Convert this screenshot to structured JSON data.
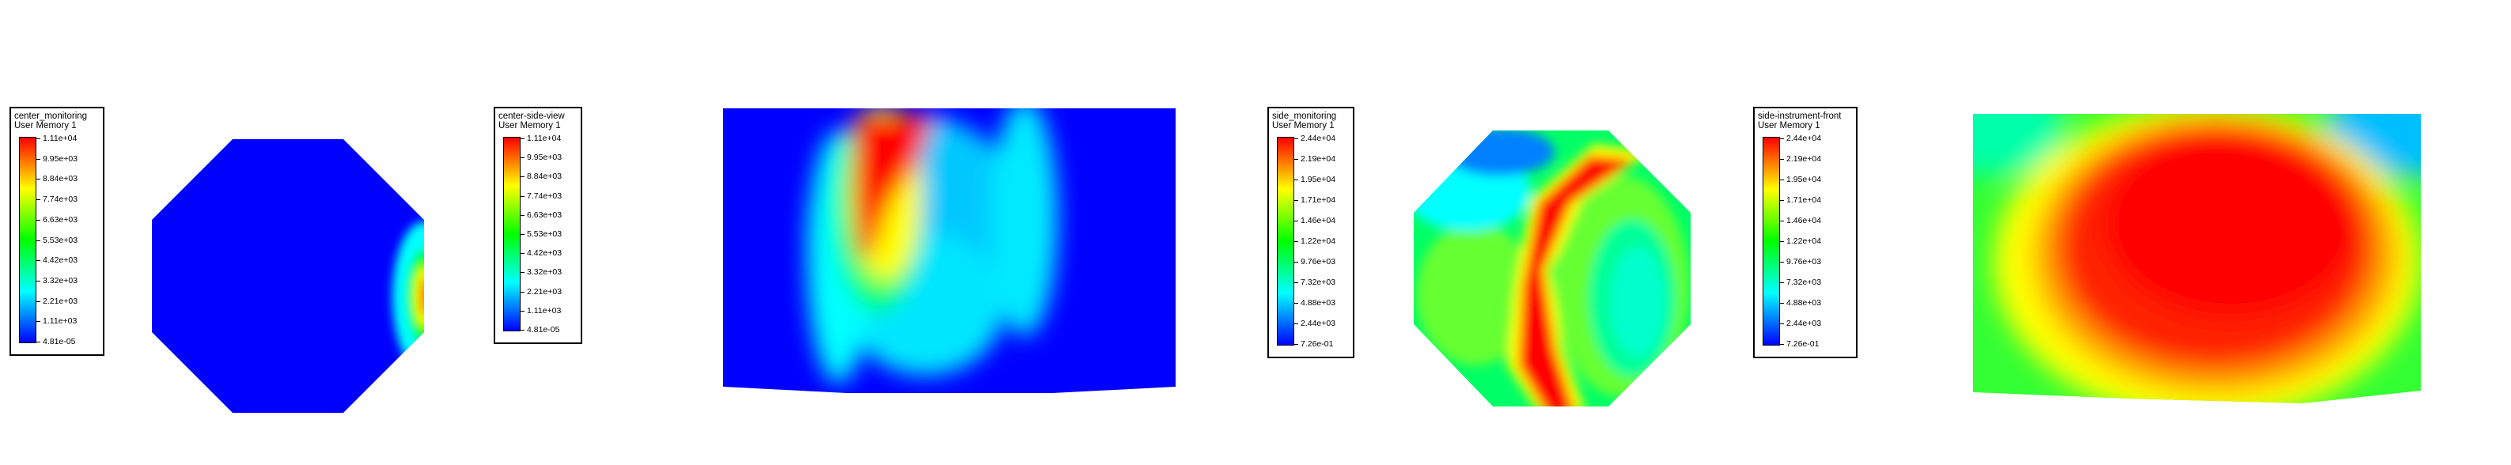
{
  "chart_data": [
    {
      "type": "heatmap",
      "view": "center_monitoring",
      "variable": "User Memory 1",
      "colormap": [
        "#0000ff",
        "#00ffff",
        "#00ff00",
        "#ffff00",
        "#ff0000"
      ],
      "legend_ticks": [
        "1.11e+04",
        "9.95e+03",
        "8.84e+03",
        "7.74e+03",
        "6.63e+03",
        "5.53e+03",
        "4.42e+03",
        "3.32e+03",
        "2.21e+03",
        "1.11e+03",
        "4.81e-05"
      ],
      "shape": "octagon"
    },
    {
      "type": "heatmap",
      "view": "center-side-view",
      "variable": "User Memory 1",
      "colormap": [
        "#0000ff",
        "#00ffff",
        "#00ff00",
        "#ffff00",
        "#ff0000"
      ],
      "legend_ticks": [
        "1.11e+04",
        "9.95e+03",
        "8.84e+03",
        "7.74e+03",
        "6.63e+03",
        "5.53e+03",
        "4.42e+03",
        "3.32e+03",
        "2.21e+03",
        "1.11e+03",
        "4.81e-05"
      ],
      "shape": "rectangle"
    },
    {
      "type": "heatmap",
      "view": "side_monitoring",
      "variable": "User Memory 1",
      "colormap": [
        "#0000ff",
        "#00ffff",
        "#00ff00",
        "#ffff00",
        "#ff0000"
      ],
      "legend_ticks": [
        "2.44e+04",
        "2.19e+04",
        "1.95e+04",
        "1.71e+04",
        "1.46e+04",
        "1.22e+04",
        "9.76e+03",
        "7.32e+03",
        "4.88e+03",
        "2.44e+03",
        "7.26e-01"
      ],
      "shape": "octagon"
    },
    {
      "type": "heatmap",
      "view": "side-instrument-front",
      "variable": "User Memory 1",
      "colormap": [
        "#0000ff",
        "#00ffff",
        "#00ff00",
        "#ffff00",
        "#ff0000"
      ],
      "legend_ticks": [
        "2.44e+04",
        "2.19e+04",
        "1.95e+04",
        "1.71e+04",
        "1.46e+04",
        "1.22e+04",
        "9.76e+03",
        "7.32e+03",
        "4.88e+03",
        "2.44e+03",
        "7.26e-01"
      ],
      "shape": "rectangle"
    }
  ]
}
